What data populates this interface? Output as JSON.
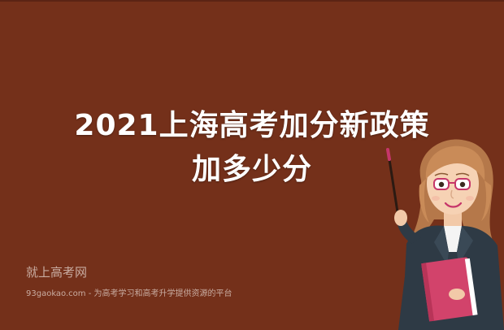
{
  "banner": {
    "headline_line1": "2021上海高考加分新政策",
    "headline_line2": "加多少分",
    "brand_name": "就上高考网",
    "tagline": "93gaokao.com - 为高考学习和高考升学提供资源的平台",
    "background_color": "#74301a"
  },
  "illustration": {
    "subject": "teacher-with-pointer-and-book",
    "book_color": "#d2436b",
    "jacket_color": "#2e3a45",
    "hair_color": "#c98b58"
  }
}
